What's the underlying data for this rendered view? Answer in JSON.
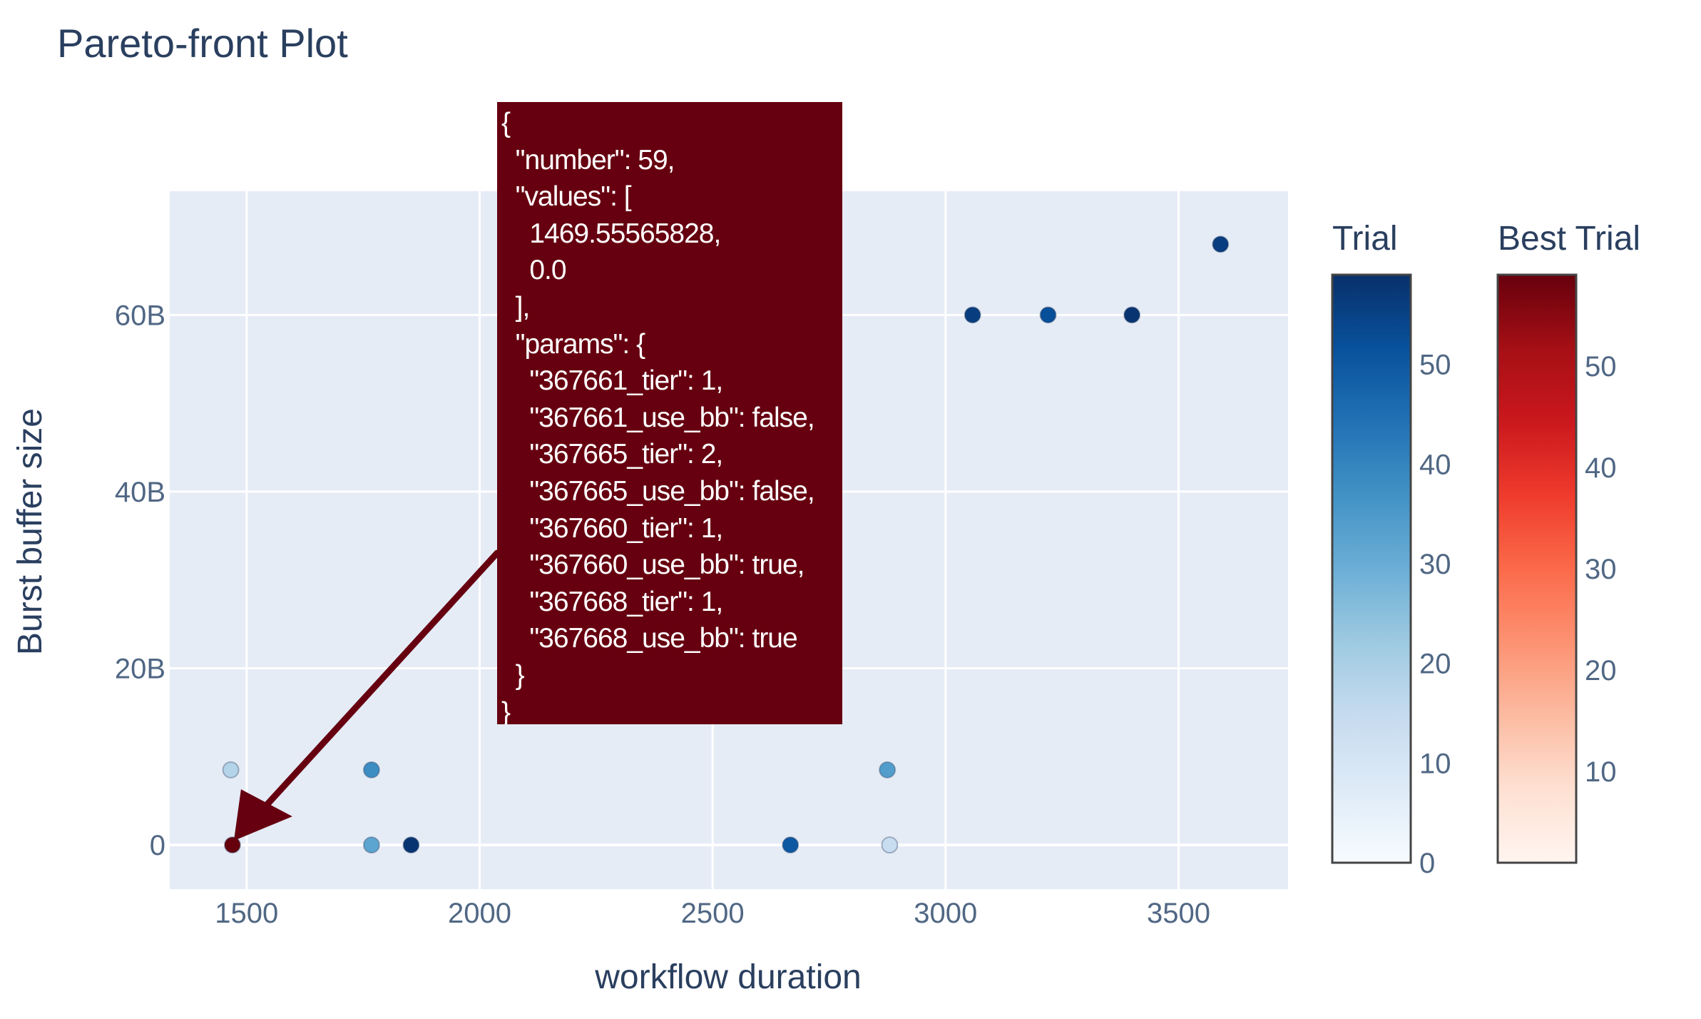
{
  "chart_data": {
    "type": "scatter",
    "title": "Pareto-front Plot",
    "xlabel": "workflow duration",
    "ylabel": "Burst buffer size",
    "xlim": [
      1335,
      3735
    ],
    "ylim": [
      -5,
      74
    ],
    "x_ticks": [
      1500,
      2000,
      2500,
      3000,
      3500
    ],
    "x_tick_labels": [
      "1500",
      "2000",
      "2500",
      "3000",
      "3500"
    ],
    "y_ticks": [
      0,
      20,
      40,
      60
    ],
    "y_tick_labels": [
      "0",
      "20B",
      "40B",
      "60B"
    ],
    "grid": true,
    "series": [
      {
        "colorscale": "blues",
        "points": [
          {
            "x": 1466,
            "y": 8.5,
            "trial": 18
          },
          {
            "x": 1768,
            "y": 8.5,
            "trial": 38
          },
          {
            "x": 1768,
            "y": 0,
            "trial": 32
          },
          {
            "x": 1853,
            "y": 0,
            "trial": 58
          },
          {
            "x": 2667,
            "y": 0,
            "trial": 50
          },
          {
            "x": 2875,
            "y": 8.5,
            "trial": 34
          },
          {
            "x": 2880,
            "y": 0,
            "trial": 14
          },
          {
            "x": 3058,
            "y": 60,
            "trial": 56
          },
          {
            "x": 3220,
            "y": 60,
            "trial": 52
          },
          {
            "x": 3400,
            "y": 60,
            "trial": 58
          },
          {
            "x": 3590,
            "y": 68,
            "trial": 56
          }
        ]
      },
      {
        "colorscale": "reds",
        "points": [
          {
            "x": 1469.55565828,
            "y": 0.0,
            "trial": 59
          }
        ]
      }
    ],
    "colorbars": [
      {
        "title": "Trial",
        "range": [
          0,
          59
        ],
        "tick_labels": [
          "0",
          "10",
          "20",
          "30",
          "40",
          "50"
        ],
        "tick_values": [
          0,
          10,
          20,
          30,
          40,
          50
        ]
      },
      {
        "title": "Best Trial",
        "range": [
          1,
          59
        ],
        "tick_labels": [
          "10",
          "20",
          "30",
          "40",
          "50"
        ],
        "tick_values": [
          10,
          20,
          30,
          40,
          50
        ]
      }
    ],
    "tooltip": {
      "lines": [
        "{",
        "  \"number\": 59,",
        "  \"values\": [",
        "    1469.55565828,",
        "    0.0",
        "  ],",
        "  \"params\": {",
        "    \"367661_tier\": 1,",
        "    \"367661_use_bb\": false,",
        "    \"367665_tier\": 2,",
        "    \"367665_use_bb\": false,",
        "    \"367660_tier\": 1,",
        "    \"367660_use_bb\": true,",
        "    \"367668_tier\": 1,",
        "    \"367668_use_bb\": true",
        "  }",
        "}"
      ]
    },
    "colors": {
      "plot_bg": "#e5ecf6",
      "grid": "#ffffff",
      "text": "#2a3f5f",
      "tick_text": "#506784",
      "tooltip_bg": "#660010",
      "arrow": "#660010"
    }
  }
}
